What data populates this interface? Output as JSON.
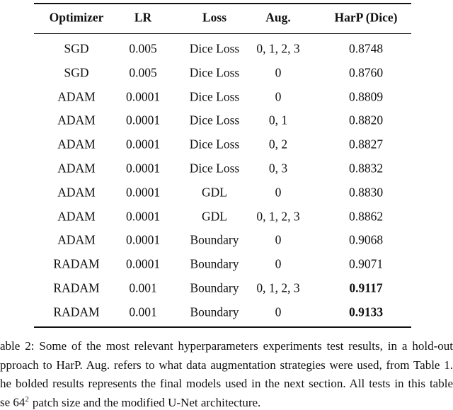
{
  "table": {
    "header": [
      "Optimizer",
      "LR",
      "Loss",
      "Aug.",
      "HarP (Dice)"
    ],
    "rows": [
      [
        "SGD",
        "0.005",
        "Dice Loss",
        "0, 1, 2, 3",
        "0.8748"
      ],
      [
        "SGD",
        "0.005",
        "Dice Loss",
        "0",
        "0.8760"
      ],
      [
        "ADAM",
        "0.0001",
        "Dice Loss",
        "0",
        "0.8809"
      ],
      [
        "ADAM",
        "0.0001",
        "Dice Loss",
        "0, 1",
        "0.8820"
      ],
      [
        "ADAM",
        "0.0001",
        "Dice Loss",
        "0, 2",
        "0.8827"
      ],
      [
        "ADAM",
        "0.0001",
        "Dice Loss",
        "0, 3",
        "0.8832"
      ],
      [
        "ADAM",
        "0.0001",
        "GDL",
        "0",
        "0.8830"
      ],
      [
        "ADAM",
        "0.0001",
        "GDL",
        "0, 1, 2, 3",
        "0.8862"
      ],
      [
        "ADAM",
        "0.0001",
        "Boundary",
        "0",
        "0.9068"
      ],
      [
        "RADAM",
        "0.0001",
        "Boundary",
        "0",
        "0.9071"
      ],
      [
        "RADAM",
        "0.001",
        "Boundary",
        "0, 1, 2, 3",
        "0.9117"
      ],
      [
        "RADAM",
        "0.001",
        "Boundary",
        "0",
        "0.9133"
      ]
    ],
    "bold_rows": [
      10,
      11
    ]
  },
  "caption": {
    "lines": [
      "able 2: Some of the most relevant hyperparameters experiments test results, in a hold-out",
      "pproach to HarP. Aug. refers to what data augmentation strategies were used, from Table 1.",
      "he bolded results represents the final models used in the next section. All tests in this table"
    ],
    "last": {
      "before": "se 64",
      "sup": "2",
      "after": "patch size and the modified U-Net architecture."
    }
  }
}
